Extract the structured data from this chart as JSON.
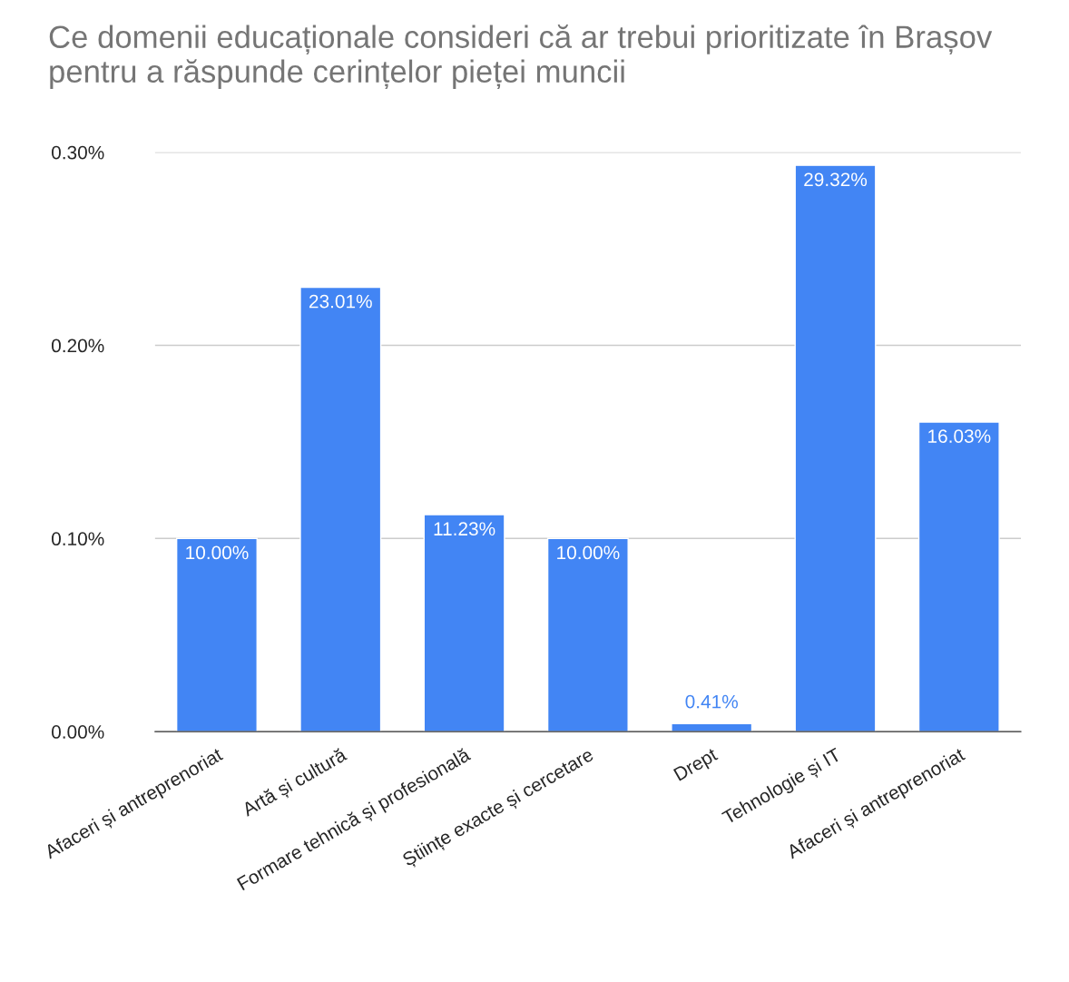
{
  "chart_data": {
    "type": "bar",
    "title": "Ce domenii educaționale consideri că ar trebui prioritizate în Brașov pentru a răspunde cerințelor pieței muncii",
    "categories": [
      "Afaceri și antreprenoriat",
      "Artă și cultură",
      "Formare tehnică și profesională",
      "Științe exacte și cercetare",
      "Drept",
      "Tehnologie și IT",
      "Afaceri și antreprenoriat"
    ],
    "values": [
      0.1,
      0.2301,
      0.1123,
      0.1,
      0.0041,
      0.2932,
      0.1603
    ],
    "value_labels": [
      "10.00%",
      "23.01%",
      "11.23%",
      "10.00%",
      "0.41%",
      "29.32%",
      "16.03%"
    ],
    "color": "#4285f4",
    "ylim": [
      0,
      0.3
    ],
    "yticks": [
      {
        "value": 0,
        "label": "0.00%"
      },
      {
        "value": 0.1,
        "label": "0.10%"
      },
      {
        "value": 0.2,
        "label": "0.20%"
      },
      {
        "value": 0.3,
        "label": "0.30%"
      }
    ],
    "grid": "y"
  }
}
